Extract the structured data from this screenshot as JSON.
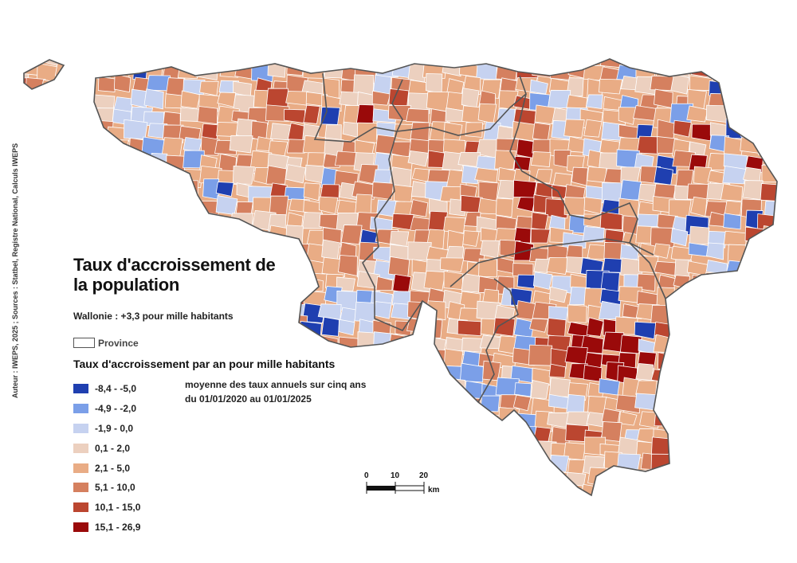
{
  "credit": "Auteur : IWEPS, 2025 ; Sources : Statbel, Registre National, Calculs IWEPS",
  "title_lines": [
    "Taux d'accroissement de",
    "la population"
  ],
  "subtitle": "Wallonie : +3,3 pour mille habitants",
  "province_label": "Province",
  "legend_title": "Taux d'accroissement par an pour mille habitants",
  "legend_note": [
    "moyenne des taux annuels sur cinq ans",
    "du 01/01/2020 au 01/01/2025"
  ],
  "legend_classes": [
    {
      "label": "-8,4 - -5,0",
      "color": "#1f3fb0"
    },
    {
      "label": "-4,9 - -2,0",
      "color": "#7b9fe8"
    },
    {
      "label": "-1,9 - 0,0",
      "color": "#c6d2f0"
    },
    {
      "label": "0,1 - 2,0",
      "color": "#ecd0bf"
    },
    {
      "label": "2,1 - 5,0",
      "color": "#e9ac85"
    },
    {
      "label": "5,1 - 10,0",
      "color": "#d5805f"
    },
    {
      "label": "10,1 - 15,0",
      "color": "#bb4630"
    },
    {
      "label": "15,1 - 26,9",
      "color": "#9a0a0a"
    }
  ],
  "scale_labels": [
    "0",
    "10",
    "20"
  ],
  "scale_unit": "km",
  "colors": {
    "province_border": "#555555",
    "commune_border": "#ffffff"
  }
}
